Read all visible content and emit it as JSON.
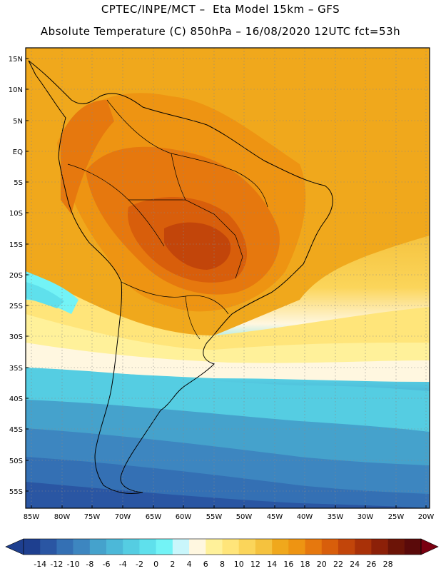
{
  "title": {
    "line1": "CPTEC/INPE/MCT –  Eta Model 15km – GFS",
    "line2": "Absolute Temperature (C) 850hPa – 16/08/2020 12UTC fct=53h"
  },
  "map": {
    "lat_labels": [
      "15N",
      "10N",
      "5N",
      "EQ",
      "5S",
      "10S",
      "15S",
      "20S",
      "25S",
      "30S",
      "35S",
      "40S",
      "45S",
      "50S",
      "55S"
    ],
    "lon_labels": [
      "85W",
      "80W",
      "75W",
      "70W",
      "65W",
      "60W",
      "55W",
      "50W",
      "45W",
      "40W",
      "35W",
      "30W",
      "25W",
      "20W"
    ]
  },
  "colorbar": {
    "labels": [
      "-14",
      "-12",
      "-10",
      "-8",
      "-6",
      "-4",
      "-2",
      "0",
      "2",
      "4",
      "6",
      "8",
      "10",
      "12",
      "14",
      "16",
      "18",
      "20",
      "22",
      "24",
      "26",
      "28"
    ],
    "colors": [
      "#1e3f8f",
      "#2a56a3",
      "#3470b4",
      "#3d86c0",
      "#45a2cc",
      "#4cb8d8",
      "#55cde2",
      "#5fe0ec",
      "#73f3f6",
      "#c9f6fb",
      "#fff7e0",
      "#fff19a",
      "#ffe57a",
      "#fbd55a",
      "#f5c23e",
      "#f0a81c",
      "#ee9412",
      "#e6780e",
      "#d85e0b",
      "#c2450a",
      "#a93108",
      "#8c2008",
      "#6c1407",
      "#5a0a0a"
    ],
    "under_color": "#1e3f8f",
    "over_color": "#7a0010"
  }
}
